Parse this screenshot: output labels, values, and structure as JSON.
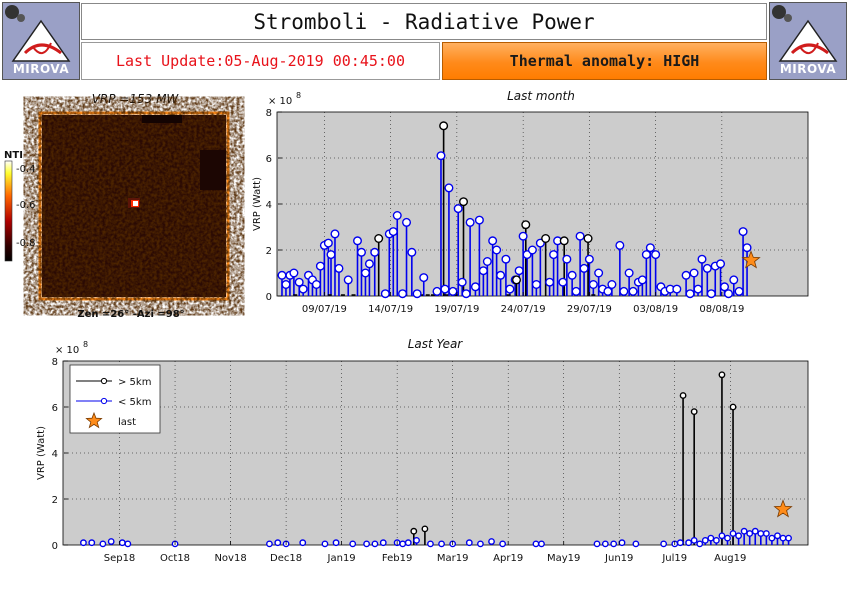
{
  "header": {
    "logo_text": "MIROVA",
    "title": "Stromboli - Radiative Power",
    "last_update": "Last Update:05-Aug-2019 00:45:00",
    "anomaly": "Thermal anomaly: HIGH",
    "anomaly_color": "#ff8a1a",
    "update_color": "#e8121a"
  },
  "thumbnail": {
    "title": "VRP =153 MW",
    "footer": "Zen =26° -Azi =98°",
    "colorbar_label": "NTI",
    "colorbar_ticks": [
      "-0.4",
      "-0.6",
      "-0.8"
    ],
    "frame_color": "#ff8c1a",
    "icon": "thermal-image"
  },
  "chart_data": [
    {
      "type": "scatter",
      "title": "Last month",
      "ylabel": "VRP (Watt)",
      "exponent": "× 10",
      "exponent_power": "8",
      "ylim": [
        0,
        8
      ],
      "yticks": [
        "0",
        "2",
        "4",
        "6",
        "8"
      ],
      "xlim_days": [
        0,
        40
      ],
      "xtick_labels": [
        "09/07/19",
        "14/07/19",
        "19/07/19",
        "24/07/19",
        "29/07/19",
        "03/08/19",
        "08/08/19"
      ],
      "grid": true,
      "series": [
        {
          "name": "< 5km",
          "color": "#0000ee",
          "points": [
            [
              0.3,
              0.9
            ],
            [
              0.6,
              0.5
            ],
            [
              0.9,
              0.9
            ],
            [
              1.2,
              1.0
            ],
            [
              1.6,
              0.6
            ],
            [
              1.9,
              0.3
            ],
            [
              2.3,
              0.9
            ],
            [
              2.6,
              0.7
            ],
            [
              2.9,
              0.5
            ],
            [
              3.2,
              1.3
            ],
            [
              3.5,
              2.2
            ],
            [
              3.8,
              2.3
            ],
            [
              4.0,
              1.8
            ],
            [
              4.3,
              2.7
            ],
            [
              4.6,
              1.2
            ],
            [
              5.3,
              0.7
            ],
            [
              6.0,
              2.4
            ],
            [
              6.3,
              1.9
            ],
            [
              6.6,
              1.0
            ],
            [
              6.9,
              1.4
            ],
            [
              7.3,
              1.9
            ],
            [
              8.1,
              0.1
            ],
            [
              8.4,
              2.7
            ],
            [
              8.7,
              2.8
            ],
            [
              9.0,
              3.5
            ],
            [
              9.4,
              0.1
            ],
            [
              9.7,
              3.2
            ],
            [
              10.1,
              1.9
            ],
            [
              10.5,
              0.1
            ],
            [
              11.0,
              0.8
            ],
            [
              12.0,
              0.2
            ],
            [
              12.3,
              6.1
            ],
            [
              12.6,
              0.3
            ],
            [
              12.9,
              4.7
            ],
            [
              13.2,
              0.2
            ],
            [
              13.6,
              3.8
            ],
            [
              13.9,
              0.6
            ],
            [
              14.2,
              0.1
            ],
            [
              14.5,
              3.2
            ],
            [
              14.9,
              0.4
            ],
            [
              15.2,
              3.3
            ],
            [
              15.5,
              1.1
            ],
            [
              15.8,
              1.5
            ],
            [
              16.2,
              2.4
            ],
            [
              16.5,
              2.0
            ],
            [
              16.8,
              0.9
            ],
            [
              17.2,
              1.6
            ],
            [
              17.5,
              0.3
            ],
            [
              17.9,
              0.7
            ],
            [
              18.2,
              1.1
            ],
            [
              18.5,
              2.6
            ],
            [
              18.8,
              1.8
            ],
            [
              19.2,
              2.0
            ],
            [
              19.5,
              0.5
            ],
            [
              19.8,
              2.3
            ],
            [
              20.5,
              0.6
            ],
            [
              20.8,
              1.8
            ],
            [
              21.1,
              2.4
            ],
            [
              21.5,
              0.6
            ],
            [
              21.8,
              1.6
            ],
            [
              22.2,
              0.9
            ],
            [
              22.5,
              0.2
            ],
            [
              22.8,
              2.6
            ],
            [
              23.1,
              1.2
            ],
            [
              23.5,
              1.6
            ],
            [
              23.8,
              0.5
            ],
            [
              24.2,
              1.0
            ],
            [
              24.5,
              0.3
            ],
            [
              24.9,
              0.2
            ],
            [
              25.2,
              0.5
            ],
            [
              25.8,
              2.2
            ],
            [
              26.1,
              0.2
            ],
            [
              26.5,
              1.0
            ],
            [
              26.8,
              0.2
            ],
            [
              27.2,
              0.6
            ],
            [
              27.5,
              0.7
            ],
            [
              27.8,
              1.8
            ],
            [
              28.1,
              2.1
            ],
            [
              28.5,
              1.8
            ],
            [
              28.9,
              0.4
            ],
            [
              29.2,
              0.2
            ],
            [
              29.6,
              0.3
            ],
            [
              30.1,
              0.3
            ],
            [
              30.8,
              0.9
            ],
            [
              31.1,
              0.1
            ],
            [
              31.4,
              1.0
            ],
            [
              31.7,
              0.3
            ],
            [
              32.0,
              1.6
            ],
            [
              32.4,
              1.2
            ],
            [
              32.7,
              0.1
            ],
            [
              33.0,
              1.3
            ],
            [
              33.4,
              1.4
            ],
            [
              33.7,
              0.4
            ],
            [
              34.0,
              0.1
            ],
            [
              34.4,
              0.7
            ],
            [
              34.8,
              0.2
            ],
            [
              35.1,
              2.8
            ],
            [
              35.4,
              2.1
            ]
          ]
        },
        {
          "name": "> 5km",
          "color": "#000000",
          "points": [
            [
              7.6,
              2.5
            ],
            [
              12.5,
              7.4
            ],
            [
              14.0,
              4.1
            ],
            [
              18.0,
              0.7
            ],
            [
              18.7,
              3.1
            ],
            [
              20.2,
              2.5
            ],
            [
              21.6,
              2.4
            ],
            [
              23.4,
              2.5
            ]
          ]
        },
        {
          "name": "last",
          "color": "#ff8c1a",
          "points": [
            [
              35.7,
              1.55
            ]
          ]
        }
      ],
      "zeros_below_5km": [
        1.3,
        3.9,
        4.9,
        5.7,
        8.3,
        9.6,
        10.4,
        10.8,
        11.3,
        11.7,
        12.7,
        13.4,
        14.1,
        17.4,
        23.8
      ]
    },
    {
      "type": "scatter",
      "title": "Last Year",
      "ylabel": "VRP (Watt)",
      "exponent": "× 10",
      "exponent_power": "8",
      "ylim": [
        0,
        8
      ],
      "yticks": [
        "0",
        "2",
        "4",
        "6",
        "8"
      ],
      "xtick_labels": [
        "Sep18",
        "Oct18",
        "Nov18",
        "Dec18",
        "Jan19",
        "Feb19",
        "Mar19",
        "Apr19",
        "May19",
        "Jun19",
        "Jul19",
        "Aug19"
      ],
      "grid": true,
      "legend": {
        "position": "top-left",
        "entries": [
          "> 5km",
          "< 5km",
          "last"
        ]
      },
      "series": [
        {
          "name": "< 5km",
          "color": "#0000ee",
          "points": [
            [
              -0.65,
              0.1
            ],
            [
              -0.5,
              0.1
            ],
            [
              -0.3,
              0.05
            ],
            [
              -0.15,
              0.15
            ],
            [
              0.05,
              0.1
            ],
            [
              0.15,
              0.05
            ],
            [
              1.0,
              0.05
            ],
            [
              2.7,
              0.05
            ],
            [
              2.85,
              0.1
            ],
            [
              3.0,
              0.05
            ],
            [
              3.3,
              0.1
            ],
            [
              3.7,
              0.05
            ],
            [
              3.9,
              0.1
            ],
            [
              4.2,
              0.05
            ],
            [
              4.45,
              0.05
            ],
            [
              4.6,
              0.05
            ],
            [
              4.75,
              0.1
            ],
            [
              5.0,
              0.1
            ],
            [
              5.1,
              0.05
            ],
            [
              5.2,
              0.1
            ],
            [
              5.35,
              0.2
            ],
            [
              5.6,
              0.05
            ],
            [
              5.8,
              0.05
            ],
            [
              6.0,
              0.05
            ],
            [
              6.3,
              0.1
            ],
            [
              6.5,
              0.05
            ],
            [
              6.7,
              0.15
            ],
            [
              6.9,
              0.05
            ],
            [
              7.5,
              0.05
            ],
            [
              7.6,
              0.05
            ],
            [
              8.6,
              0.05
            ],
            [
              8.75,
              0.05
            ],
            [
              8.9,
              0.05
            ],
            [
              9.05,
              0.1
            ],
            [
              9.3,
              0.05
            ],
            [
              9.8,
              0.05
            ],
            [
              10.0,
              0.05
            ],
            [
              10.1,
              0.1
            ],
            [
              10.25,
              0.1
            ],
            [
              10.35,
              0.2
            ],
            [
              10.45,
              0.05
            ],
            [
              10.55,
              0.2
            ],
            [
              10.65,
              0.3
            ],
            [
              10.75,
              0.2
            ],
            [
              10.85,
              0.4
            ],
            [
              10.95,
              0.3
            ],
            [
              11.05,
              0.5
            ],
            [
              11.15,
              0.4
            ],
            [
              11.25,
              0.6
            ],
            [
              11.35,
              0.5
            ],
            [
              11.45,
              0.6
            ],
            [
              11.55,
              0.5
            ],
            [
              11.65,
              0.5
            ],
            [
              11.75,
              0.3
            ],
            [
              11.85,
              0.4
            ],
            [
              11.95,
              0.3
            ],
            [
              12.05,
              0.3
            ]
          ]
        },
        {
          "name": "> 5km",
          "color": "#000000",
          "points": [
            [
              5.3,
              0.6
            ],
            [
              5.5,
              0.7
            ],
            [
              10.15,
              6.5
            ],
            [
              10.35,
              5.8
            ],
            [
              10.85,
              7.4
            ],
            [
              11.05,
              6.0
            ]
          ]
        },
        {
          "name": "last",
          "color": "#ff8c1a",
          "points": [
            [
              11.95,
              1.55
            ]
          ]
        }
      ]
    }
  ]
}
